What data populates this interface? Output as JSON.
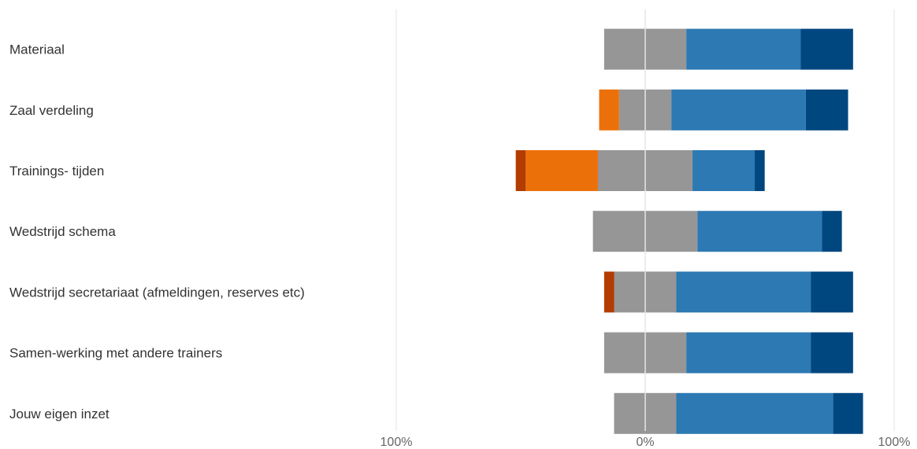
{
  "chart_data": {
    "type": "bar",
    "orientation": "horizontal",
    "stacking": "diverging",
    "title": "",
    "xlabel": "",
    "ylabel": "",
    "xlim": [
      -100,
      100
    ],
    "x_tick_labels": [
      "100%",
      "0%",
      "100%"
    ],
    "grid": true,
    "legend": "none",
    "categories": [
      "Materiaal",
      "Zaal verdeling",
      "Trainings- tijden",
      "Wedstrijd schema",
      "Wedstrijd secretariaat (afmeldingen, reserves etc)",
      "Samen-werking met andere trainers",
      "Jouw eigen inzet"
    ],
    "series": [
      {
        "color": "#b33c00",
        "side": "negative",
        "values": [
          0,
          0,
          4,
          0,
          4,
          0,
          0
        ]
      },
      {
        "color": "#ec700a",
        "side": "negative",
        "values": [
          0,
          8,
          29,
          0,
          0,
          0,
          0
        ]
      },
      {
        "color": "#969696",
        "side": "center",
        "values": [
          33,
          21,
          38,
          42,
          25,
          33,
          25
        ]
      },
      {
        "color": "#2c79b3",
        "side": "positive",
        "values": [
          46,
          54,
          25,
          50,
          54,
          50,
          63
        ]
      },
      {
        "color": "#00467f",
        "side": "positive",
        "values": [
          21,
          17,
          4,
          8,
          17,
          17,
          12
        ]
      }
    ]
  }
}
